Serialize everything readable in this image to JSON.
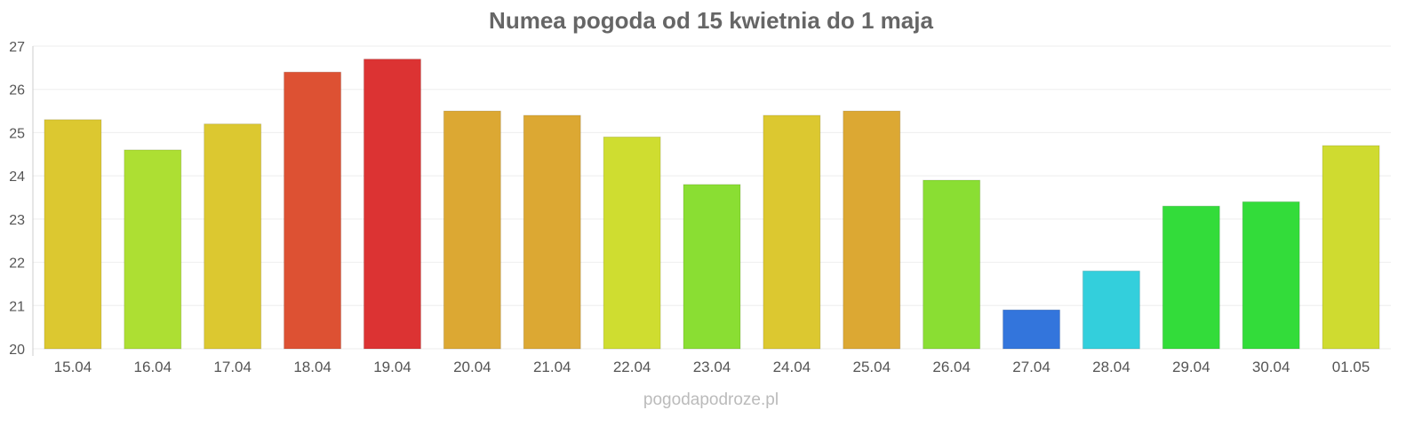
{
  "chart_data": {
    "type": "bar",
    "title": "Numea pogoda od 15 kwietnia do 1 maja",
    "xlabel": "",
    "ylabel": "",
    "ylim": [
      20,
      27
    ],
    "yticks": [
      "20",
      "21",
      "22",
      "23",
      "24",
      "25",
      "26",
      "27"
    ],
    "grid": true,
    "categories": [
      "15.04",
      "16.04",
      "17.04",
      "18.04",
      "19.04",
      "20.04",
      "21.04",
      "22.04",
      "23.04",
      "24.04",
      "25.04",
      "26.04",
      "27.04",
      "28.04",
      "29.04",
      "30.04",
      "01.05"
    ],
    "values": [
      25.3,
      24.6,
      25.2,
      26.4,
      26.7,
      25.5,
      25.4,
      24.9,
      23.8,
      25.4,
      25.5,
      23.9,
      20.9,
      21.8,
      23.3,
      23.4,
      24.7
    ],
    "colors": [
      "#dcc830",
      "#addf33",
      "#dcc830",
      "#dd5133",
      "#dc3333",
      "#dca833",
      "#dca833",
      "#cfdd30",
      "#8ade33",
      "#dcc830",
      "#dca833",
      "#8ade33",
      "#3375dc",
      "#33cfdc",
      "#33dc3a",
      "#33dc3a",
      "#cfdb30"
    ]
  },
  "credit": "pogodapodroze.pl"
}
